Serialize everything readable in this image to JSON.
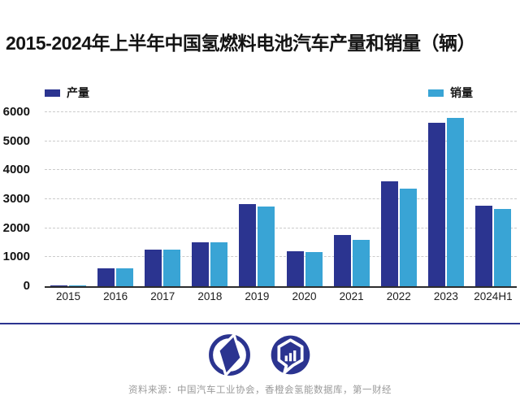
{
  "title": "2015-2024年上半年中国氢燃料电池汽车产量和销量（辆）",
  "legend": {
    "production": "产量",
    "sales": "销量"
  },
  "source": "资料来源：中国汽车工业协会，香橙会氢能数据库，第一财经",
  "colors": {
    "production": "#2B3490",
    "sales": "#39A4D5",
    "separator": "#2B3490",
    "logo": "#2B3490",
    "gridline": "#cbcbcb",
    "axis": "#2d2d2d"
  },
  "logos": {
    "left": "yicai-compass-logo",
    "right": "hydrogen-data-hexagon-logo"
  },
  "chart_data": {
    "type": "bar",
    "title": "2015-2024年上半年中国氢燃料电池汽车产量和销量（辆）",
    "categories": [
      "2015",
      "2016",
      "2017",
      "2018",
      "2019",
      "2020",
      "2021",
      "2022",
      "2023",
      "2024H1"
    ],
    "series": [
      {
        "name": "产量",
        "values": [
          10,
          629,
          1275,
          1527,
          2833,
          1199,
          1777,
          3626,
          5631,
          2770
        ]
      },
      {
        "name": "销量",
        "values": [
          10,
          629,
          1275,
          1527,
          2737,
          1177,
          1586,
          3367,
          5805,
          2650
        ]
      }
    ],
    "xlabel": "",
    "ylabel": "",
    "ylim": [
      0,
      6000
    ],
    "yticks": [
      0,
      1000,
      2000,
      3000,
      4000,
      5000,
      6000
    ],
    "grid": "horizontal-dashed",
    "legend_position": "top"
  }
}
